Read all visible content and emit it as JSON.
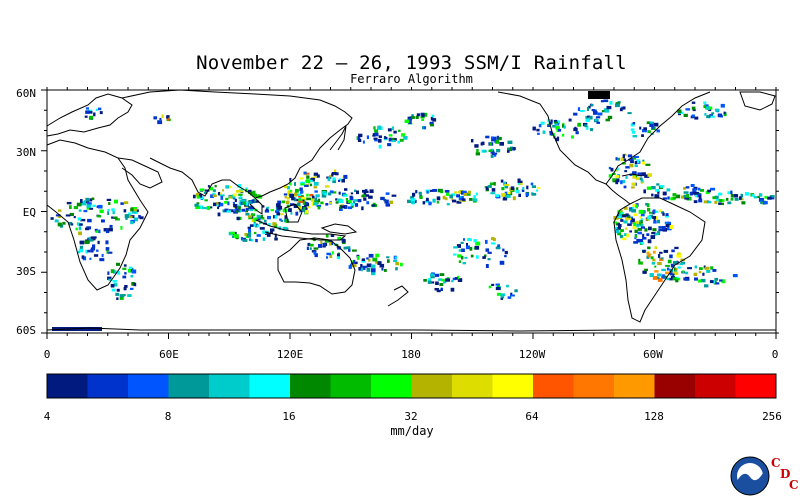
{
  "title": "November 22 – 26, 1993 SSM/I Rainfall",
  "subtitle": "Ferraro Algorithm",
  "lat_labels": [
    "60N",
    "30N",
    "EQ",
    "30S",
    "60S"
  ],
  "lon_labels": [
    "0",
    "60E",
    "120E",
    "180",
    "120W",
    "60W",
    "0"
  ],
  "colorbar": {
    "tick_labels": [
      "4",
      "8",
      "16",
      "32",
      "64",
      "128",
      "256"
    ],
    "units": "mm/day",
    "colors": [
      "#001a80",
      "#0033cc",
      "#0055ff",
      "#009999",
      "#00cccc",
      "#00ffff",
      "#008800",
      "#00bb00",
      "#00ff00",
      "#b3b300",
      "#dddd00",
      "#ffff00",
      "#ff5500",
      "#ff7700",
      "#ff9900",
      "#990000",
      "#cc0000",
      "#ff0000"
    ]
  },
  "logo": {
    "name": "NOAA",
    "org_letters": [
      "C",
      "D",
      "C"
    ]
  }
}
